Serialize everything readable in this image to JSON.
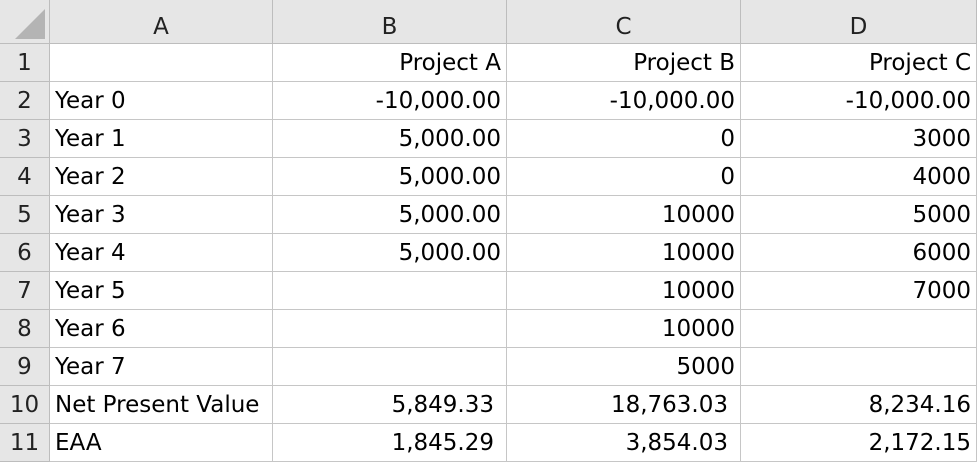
{
  "columns": [
    "A",
    "B",
    "C",
    "D"
  ],
  "rows": [
    {
      "num": "1",
      "a": "",
      "b": "Project A",
      "c": "Project B",
      "d": "Project C"
    },
    {
      "num": "2",
      "a": "Year 0",
      "b": "-10,000.00",
      "c": "-10,000.00",
      "d": "-10,000.00"
    },
    {
      "num": "3",
      "a": "Year 1",
      "b": "5,000.00",
      "c": "0",
      "d": "3000"
    },
    {
      "num": "4",
      "a": "Year 2",
      "b": "5,000.00",
      "c": "0",
      "d": "4000"
    },
    {
      "num": "5",
      "a": "Year 3",
      "b": "5,000.00",
      "c": "10000",
      "d": "5000"
    },
    {
      "num": "6",
      "a": "Year 4",
      "b": "5,000.00",
      "c": "10000",
      "d": "6000"
    },
    {
      "num": "7",
      "a": "Year 5",
      "b": "",
      "c": "10000",
      "d": "7000"
    },
    {
      "num": "8",
      "a": "Year 6",
      "b": "",
      "c": "10000",
      "d": ""
    },
    {
      "num": "9",
      "a": "Year 7",
      "b": "",
      "c": "5000",
      "d": ""
    },
    {
      "num": "10",
      "a": "Net Present Value",
      "b": "5,849.33",
      "c": "18,763.03",
      "d": "8,234.16"
    },
    {
      "num": "11",
      "a": "EAA",
      "b": "1,845.29",
      "c": "3,854.03",
      "d": "2,172.15"
    }
  ]
}
